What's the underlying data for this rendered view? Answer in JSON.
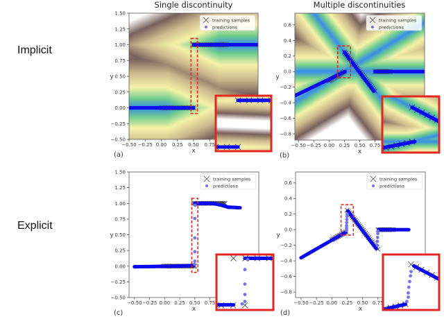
{
  "column_titles": [
    "Single discontinuity",
    "Multiple discontinuities"
  ],
  "row_labels": [
    "Implicit",
    "Explicit"
  ],
  "legend": {
    "training": "training samples",
    "predictions": "predictions"
  },
  "colors": {
    "prediction": "#0a0af0",
    "transition": "#7373ee",
    "training": "#333333",
    "highlight": "#e5261e"
  },
  "chart_data": [
    {
      "id": "a",
      "label": "(a)",
      "type": "scatter",
      "heatmap": "single",
      "xlabel": "x",
      "ylabel": "y",
      "xlim": [
        -0.5,
        1.5
      ],
      "ylim": [
        -0.5,
        1.5
      ],
      "xticks": [
        "-0.50",
        "-0.25",
        "0.00",
        "0.25",
        "0.50",
        "0.75"
      ],
      "yticks": [
        "-0.50",
        "-0.25",
        "0.00",
        "0.25",
        "0.50",
        "0.75",
        "1.00",
        "1.25",
        "1.50"
      ],
      "legend_position": "top-right",
      "training_segments": [
        {
          "from": [
            0.0,
            0.0
          ],
          "to": [
            0.5,
            0.0
          ],
          "n": 26
        },
        {
          "from": [
            0.5,
            1.0
          ],
          "to": [
            1.0,
            1.0
          ],
          "n": 26
        }
      ],
      "predictions": [
        [
          [
            -0.5,
            0.0
          ],
          [
            0.5,
            0.0
          ]
        ],
        [
          [
            0.5,
            1.0
          ],
          [
            1.5,
            1.0
          ]
        ]
      ],
      "transition_points": [],
      "zoom_window": {
        "xlim": [
          0.46,
          0.56
        ],
        "ylim": [
          -0.09,
          1.1
        ]
      }
    },
    {
      "id": "b",
      "label": "(b)",
      "type": "scatter",
      "heatmap": "multi",
      "xlabel": "x",
      "ylabel": "y",
      "xlim": [
        -0.56,
        1.56
      ],
      "ylim": [
        -0.88,
        0.75
      ],
      "xticks": [
        "-0.50",
        "-0.25",
        "0.00",
        "0.25",
        "0.50",
        "0.75"
      ],
      "yticks": [
        "-0.8",
        "-0.6",
        "-0.4",
        "-0.2",
        "0.0",
        "0.2",
        "0.4",
        "0.6"
      ],
      "legend_position": "top-right",
      "training_segments": [
        {
          "from": [
            0.0,
            -0.12
          ],
          "to": [
            0.25,
            0.0
          ],
          "n": 14
        },
        {
          "from": [
            0.25,
            0.25
          ],
          "to": [
            0.75,
            -0.25
          ],
          "n": 28
        },
        {
          "from": [
            0.75,
            0.0
          ],
          "to": [
            1.0,
            0.0
          ],
          "n": 14
        }
      ],
      "predictions": [
        [
          [
            -0.56,
            -0.31
          ],
          [
            0.26,
            0.0
          ]
        ],
        [
          [
            0.25,
            0.25
          ],
          [
            0.73,
            -0.25
          ]
        ],
        [
          [
            0.75,
            0.0
          ],
          [
            1.56,
            0.0
          ]
        ]
      ],
      "transition_points": [],
      "zoom_window": {
        "xlim": [
          0.14,
          0.35
        ],
        "ylim": [
          -0.08,
          0.33
        ]
      }
    },
    {
      "id": "c",
      "label": "(c)",
      "type": "scatter",
      "heatmap": "none",
      "xlabel": "x",
      "ylabel": "y",
      "xlim": [
        -0.59,
        1.56
      ],
      "ylim": [
        -0.5,
        1.5
      ],
      "xticks": [
        "-0.50",
        "-0.25",
        "0.00",
        "0.25",
        "0.50",
        "0.75"
      ],
      "yticks": [
        "-0.50",
        "-0.25",
        "0.00",
        "0.25",
        "0.50",
        "0.75",
        "1.00",
        "1.25",
        "1.50"
      ],
      "legend_position": "top-right",
      "training_segments": [
        {
          "from": [
            -0.02,
            0.0
          ],
          "to": [
            0.5,
            0.0
          ],
          "n": 26
        },
        {
          "from": [
            0.48,
            1.0
          ],
          "to": [
            1.0,
            1.0
          ],
          "n": 26
        }
      ],
      "predictions": [
        [
          [
            -0.5,
            -0.01
          ],
          [
            0.2,
            0.0
          ],
          [
            0.48,
            0.01
          ]
        ],
        [
          [
            0.5,
            1.0
          ],
          [
            0.8,
            1.0
          ],
          [
            0.95,
            0.97
          ],
          [
            1.05,
            0.94
          ],
          [
            1.25,
            0.93
          ]
        ]
      ],
      "transition_points": [
        [
          0.495,
          0.03
        ],
        [
          0.5,
          0.08
        ],
        [
          0.5,
          0.23
        ],
        [
          0.5,
          0.45
        ],
        [
          0.5,
          0.76
        ],
        [
          0.505,
          0.97
        ]
      ],
      "zoom_window": {
        "xlim": [
          0.45,
          0.55
        ],
        "ylim": [
          -0.1,
          1.08
        ]
      }
    },
    {
      "id": "d",
      "label": "(d)",
      "type": "scatter",
      "heatmap": "none",
      "xlabel": "x",
      "ylabel": "y",
      "xlim": [
        -0.59,
        1.52
      ],
      "ylim": [
        -0.87,
        0.74
      ],
      "xticks": [
        "-0.50",
        "-0.25",
        "0.00",
        "0.25",
        "0.50",
        "0.75"
      ],
      "yticks": [
        "-0.8",
        "-0.6",
        "-0.4",
        "-0.2",
        "0.0",
        "0.2",
        "0.4",
        "0.6"
      ],
      "legend_position": "top-right",
      "training_segments": [
        {
          "from": [
            0.0,
            -0.13
          ],
          "to": [
            0.23,
            -0.03
          ],
          "n": 14
        },
        {
          "from": [
            0.25,
            0.25
          ],
          "to": [
            0.75,
            -0.25
          ],
          "n": 28
        },
        {
          "from": [
            0.75,
            0.0
          ],
          "to": [
            1.0,
            0.0
          ],
          "n": 14
        }
      ],
      "predictions": [
        [
          [
            -0.5,
            -0.36
          ],
          [
            0.23,
            -0.03
          ]
        ],
        [
          [
            0.26,
            0.24
          ],
          [
            0.72,
            -0.24
          ]
        ],
        [
          [
            0.76,
            0.0
          ],
          [
            1.25,
            0.0
          ]
        ]
      ],
      "transition_points": [
        [
          0.235,
          -0.01
        ],
        [
          0.24,
          0.02
        ],
        [
          0.24,
          0.05
        ],
        [
          0.242,
          0.09
        ],
        [
          0.245,
          0.13
        ],
        [
          0.248,
          0.17
        ],
        [
          0.25,
          0.2
        ],
        [
          0.74,
          -0.2
        ],
        [
          0.742,
          -0.15
        ],
        [
          0.745,
          -0.1
        ],
        [
          0.748,
          -0.05
        ],
        [
          0.75,
          -0.02
        ]
      ],
      "zoom_window": {
        "xlim": [
          0.15,
          0.35
        ],
        "ylim": [
          -0.07,
          0.32
        ]
      }
    }
  ]
}
